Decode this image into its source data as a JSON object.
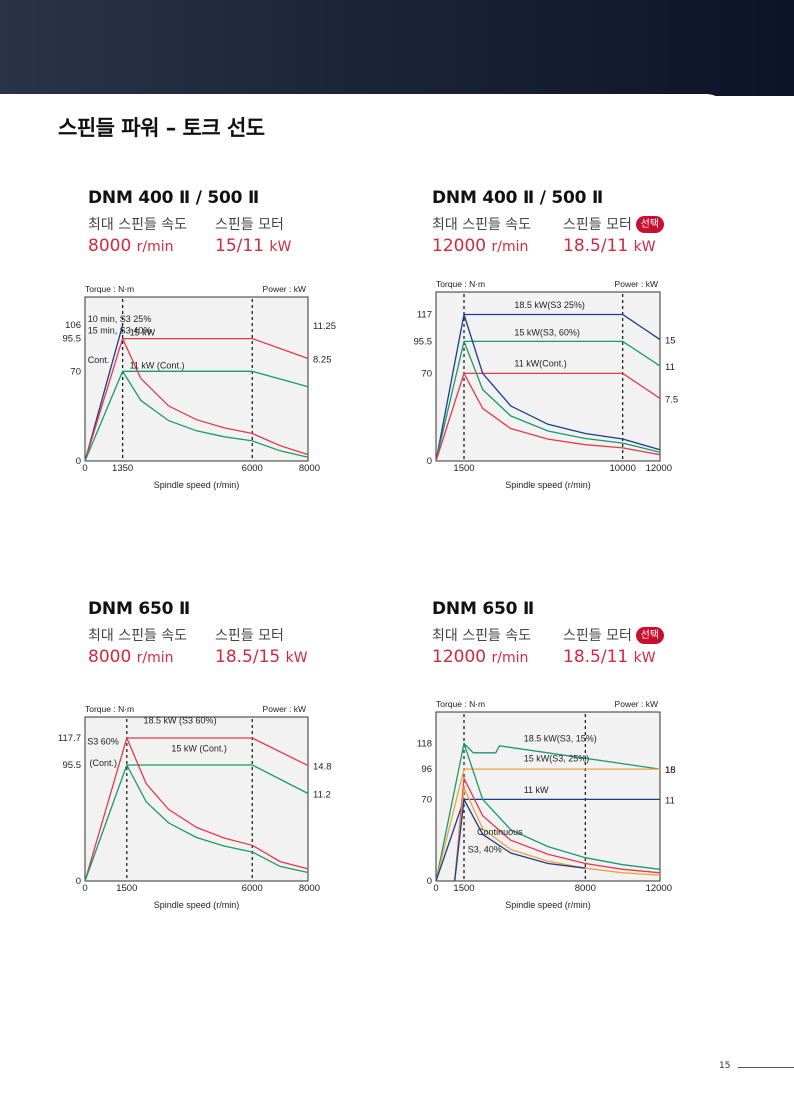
{
  "page": {
    "title": "스핀들 파워 – 토크 선도",
    "page_number": "15"
  },
  "panels": [
    {
      "model": "DNM 400 Ⅱ / 500 Ⅱ",
      "speed_label": "최대 스핀들 속도",
      "speed_value": "8000",
      "speed_unit": "r/min",
      "motor_label": "스핀들 모터",
      "motor_value": "15/11",
      "motor_unit": "kW",
      "badge": ""
    },
    {
      "model": "DNM 400 Ⅱ / 500 Ⅱ",
      "speed_label": "최대 스핀들 속도",
      "speed_value": "12000",
      "speed_unit": "r/min",
      "motor_label": "스핀들 모터",
      "motor_value": "18.5/11",
      "motor_unit": "kW",
      "badge": "선택"
    },
    {
      "model": "DNM 650 Ⅱ",
      "speed_label": "최대 스핀들 속도",
      "speed_value": "8000",
      "speed_unit": "r/min",
      "motor_label": "스핀들 모터",
      "motor_value": "18.5/15",
      "motor_unit": "kW",
      "badge": ""
    },
    {
      "model": "DNM 650 Ⅱ",
      "speed_label": "최대 스핀들 속도",
      "speed_value": "12000",
      "speed_unit": "r/min",
      "motor_label": "스핀들 모터",
      "motor_value": "18.5/11",
      "motor_unit": "kW",
      "badge": "선택"
    }
  ],
  "chart_data": [
    {
      "type": "line",
      "ylabel": "Torque : N·m",
      "y2label": "Power : kW",
      "xlabel": "Spindle speed (r/min)",
      "xlim": [
        0,
        8000
      ],
      "ylim": [
        0,
        128
      ],
      "x_ticks": [
        0,
        1350,
        6000,
        8000
      ],
      "y_ticks": [
        0,
        70,
        95.5,
        106
      ],
      "y2_ticks": [
        11.25,
        8.25
      ],
      "y_tick_labels": [
        "0",
        "70",
        "95.5",
        "106"
      ],
      "x_tick_labels": [
        "0",
        "1350",
        "6000",
        "8000"
      ],
      "y2_tick_labels": [
        "11.25",
        "8.25"
      ],
      "grid": false,
      "series": [
        {
          "color": "#1b3c8c",
          "x": [
            0,
            1350
          ],
          "y": [
            0,
            106
          ]
        },
        {
          "color": "#e23a4e",
          "x": [
            0,
            1350,
            6000,
            8000
          ],
          "y": [
            0,
            95.5,
            95.5,
            80
          ]
        },
        {
          "color": "#1a9a6a",
          "x": [
            0,
            1350,
            6000,
            8000
          ],
          "y": [
            0,
            70,
            70,
            58
          ]
        },
        {
          "color": "#e23a4e",
          "x": [
            1350,
            2000,
            3000,
            4000,
            5000,
            6000,
            7000,
            8000
          ],
          "y": [
            95.5,
            64.5,
            43,
            32.2,
            25.8,
            21.5,
            12,
            5
          ]
        },
        {
          "color": "#1a9a6a",
          "x": [
            1350,
            2000,
            3000,
            4000,
            5000,
            6000,
            7000,
            8000
          ],
          "y": [
            70,
            47.3,
            31.5,
            23.6,
            18.9,
            15.7,
            8,
            3
          ]
        }
      ],
      "annotations": [
        {
          "text": "10 min, S3 25%",
          "x": 100,
          "y": 106
        },
        {
          "text": "15 min, S3 40%",
          "x": 100,
          "y": 97
        },
        {
          "text": "15 kW",
          "x": 1600,
          "y": 95.5
        },
        {
          "text": "Cont.",
          "x": 100,
          "y": 74
        },
        {
          "text": "11 kW (Cont.)",
          "x": 1600,
          "y": 70
        }
      ],
      "vlines": [
        1350,
        6000
      ]
    },
    {
      "type": "line",
      "ylabel": "Torque : N·m",
      "y2label": "Power : kW",
      "xlabel": "Spindle speed (r/min)",
      "xlim": [
        0,
        12000
      ],
      "ylim": [
        0,
        135
      ],
      "x_ticks": [
        1500,
        10000,
        12000
      ],
      "y_ticks": [
        0,
        70,
        95.5,
        117
      ],
      "y2_ticks": [
        15,
        11,
        7.5
      ],
      "y_tick_labels": [
        "0",
        "70",
        "95.5",
        "117"
      ],
      "x_tick_labels": [
        "1500",
        "10000",
        "12000"
      ],
      "y2_tick_labels": [
        "15",
        "11",
        "7.5"
      ],
      "grid": false,
      "series": [
        {
          "color": "#1b3c8c",
          "x": [
            0,
            1500,
            10000,
            12000
          ],
          "y": [
            0,
            117,
            117,
            97
          ]
        },
        {
          "color": "#1a9a6a",
          "x": [
            0,
            1500,
            10000,
            12000
          ],
          "y": [
            0,
            95.5,
            95.5,
            76
          ]
        },
        {
          "color": "#e23a4e",
          "x": [
            0,
            1500,
            10000,
            12000
          ],
          "y": [
            0,
            70,
            70,
            50
          ]
        },
        {
          "color": "#1b3c8c",
          "x": [
            1500,
            2500,
            4000,
            6000,
            8000,
            10000,
            12000
          ],
          "y": [
            117,
            70,
            44,
            29.3,
            22,
            17.6,
            9
          ]
        },
        {
          "color": "#1a9a6a",
          "x": [
            1500,
            2500,
            4000,
            6000,
            8000,
            10000,
            12000
          ],
          "y": [
            95.5,
            57,
            36,
            24,
            18,
            14.3,
            7
          ]
        },
        {
          "color": "#e23a4e",
          "x": [
            1500,
            2500,
            4000,
            6000,
            8000,
            10000,
            12000
          ],
          "y": [
            70,
            42,
            26,
            17.5,
            13,
            10.5,
            5
          ]
        }
      ],
      "annotations": [
        {
          "text": "18.5 kW(S3 25%)",
          "x": 4200,
          "y": 120
        },
        {
          "text": "15 kW(S3, 60%)",
          "x": 4200,
          "y": 98
        },
        {
          "text": "11 kW(Cont.)",
          "x": 4200,
          "y": 73
        }
      ],
      "vlines": [
        1500,
        10000
      ]
    },
    {
      "type": "line",
      "ylabel": "Torque : N·m",
      "y2label": "Power : kW",
      "xlabel": "Spindle speed (r/min)",
      "xlim": [
        0,
        8000
      ],
      "ylim": [
        0,
        135
      ],
      "x_ticks": [
        0,
        1500,
        6000,
        8000
      ],
      "y_ticks": [
        0,
        95.5,
        117.7
      ],
      "y2_ticks": [
        14.8,
        11.2
      ],
      "y_tick_labels": [
        "0",
        "95.5",
        "117.7"
      ],
      "x_tick_labels": [
        "0",
        "1500",
        "6000",
        "8000"
      ],
      "y2_tick_labels": [
        "14.8",
        "11.2"
      ],
      "grid": false,
      "series": [
        {
          "color": "#e23a4e",
          "x": [
            0,
            1500,
            6000,
            8000
          ],
          "y": [
            0,
            117.7,
            117.7,
            95
          ]
        },
        {
          "color": "#1a9a6a",
          "x": [
            0,
            1500,
            6000,
            8000
          ],
          "y": [
            0,
            95.5,
            95.5,
            72
          ]
        },
        {
          "color": "#e23a4e",
          "x": [
            1500,
            2200,
            3000,
            4000,
            5000,
            6000,
            7000,
            8000
          ],
          "y": [
            117.7,
            80,
            58.9,
            44.1,
            35.3,
            29.4,
            16,
            10
          ]
        },
        {
          "color": "#1a9a6a",
          "x": [
            1500,
            2200,
            3000,
            4000,
            5000,
            6000,
            7000,
            8000
          ],
          "y": [
            95.5,
            65,
            47.8,
            35.8,
            28.7,
            23.9,
            12,
            7
          ]
        }
      ],
      "annotations": [
        {
          "text": "18.5 kW (S3 60%)",
          "x": 2100,
          "y": 127
        },
        {
          "text": "S3 60%",
          "x": 80,
          "y": 110
        },
        {
          "text": "15 kW (Cont.)",
          "x": 3100,
          "y": 104
        },
        {
          "text": "(Cont.)",
          "x": 160,
          "y": 92
        }
      ],
      "vlines": [
        1500,
        6000
      ]
    },
    {
      "type": "line",
      "ylabel": "Torque : N·m",
      "y2label": "Power : kW",
      "xlabel": "Spindle speed (r/min)",
      "xlim": [
        0,
        12000
      ],
      "ylim": [
        0,
        145
      ],
      "x_ticks": [
        0,
        1500,
        8000,
        12000
      ],
      "y_ticks": [
        0,
        70,
        96,
        118
      ],
      "y2_ticks": [
        18,
        15,
        11
      ],
      "y_tick_labels": [
        "0",
        "70",
        "96",
        "118"
      ],
      "x_tick_labels": [
        "0",
        "1500",
        "8000",
        "12000"
      ],
      "y2_tick_labels": [
        "18",
        "15",
        "11"
      ],
      "grid": false,
      "series": [
        {
          "color": "#1a9a6a",
          "x": [
            0,
            1500,
            2000,
            3200,
            3400,
            12000
          ],
          "y": [
            0,
            118,
            110,
            110,
            116,
            96
          ]
        },
        {
          "color": "#f2a13a",
          "x": [
            0,
            1500,
            12000
          ],
          "y": [
            0,
            96,
            96
          ]
        },
        {
          "color": "#1b3c8c",
          "x": [
            0,
            1500,
            12000
          ],
          "y": [
            0,
            70,
            70
          ]
        },
        {
          "color": "#1a9a6a",
          "x": [
            1500,
            2500,
            4000,
            6000,
            8000,
            10000,
            12000
          ],
          "y": [
            118,
            70,
            44,
            29.5,
            20,
            14,
            10
          ]
        },
        {
          "color": "#e23a4e",
          "x": [
            1000,
            1500,
            2500,
            4000,
            6000,
            8000,
            10000,
            12000
          ],
          "y": [
            0,
            88,
            56,
            35,
            23,
            15,
            10,
            7
          ]
        },
        {
          "color": "#f2a13a",
          "x": [
            1000,
            1500,
            2500,
            4000,
            6000,
            8000,
            10000,
            12000
          ],
          "y": [
            0,
            80,
            45,
            27,
            17,
            11,
            7,
            5
          ]
        },
        {
          "color": "#1b3c8c",
          "x": [
            1000,
            1500,
            2500,
            4000,
            6000,
            8000
          ],
          "y": [
            0,
            70,
            40,
            24,
            15,
            11
          ]
        }
      ],
      "annotations": [
        {
          "text": "18.5 kW(S3, 15%)",
          "x": 4700,
          "y": 117
        },
        {
          "text": "15 kW(S3, 25%)",
          "x": 4700,
          "y": 100
        },
        {
          "text": "11 kW",
          "x": 4700,
          "y": 73
        },
        {
          "text": "Continuous",
          "x": 2200,
          "y": 37
        },
        {
          "text": "S3, 40%",
          "x": 1700,
          "y": 22
        }
      ],
      "vlines": [
        1500,
        8000
      ]
    }
  ]
}
